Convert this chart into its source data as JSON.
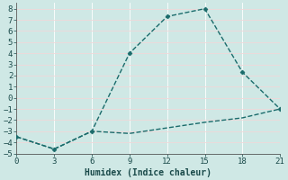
{
  "xlabel": "Humidex (Indice chaleur)",
  "background_color": "#cfe8e5",
  "grid_color_major": "#f0d8d8",
  "grid_color_minor": "#ffffff",
  "line_color": "#1a6b6b",
  "xlim": [
    0,
    21
  ],
  "ylim": [
    -5,
    8.5
  ],
  "xticks": [
    0,
    3,
    6,
    9,
    12,
    15,
    18,
    21
  ],
  "yticks": [
    -5,
    -4,
    -3,
    -2,
    -1,
    0,
    1,
    2,
    3,
    4,
    5,
    6,
    7,
    8
  ],
  "line1_x": [
    0,
    3,
    6,
    9,
    12,
    15,
    18,
    21
  ],
  "line1_y": [
    -3.5,
    -4.6,
    -3.0,
    4.0,
    7.3,
    8.0,
    2.3,
    -1.0
  ],
  "line2_x": [
    0,
    3,
    6,
    9,
    12,
    15,
    18,
    21
  ],
  "line2_y": [
    -3.5,
    -4.6,
    -3.0,
    -3.2,
    -2.7,
    -2.2,
    -1.8,
    -1.0
  ],
  "marker": "D",
  "markersize": 2.5,
  "linewidth": 1.0,
  "tick_fontsize": 6.5,
  "xlabel_fontsize": 7.0
}
